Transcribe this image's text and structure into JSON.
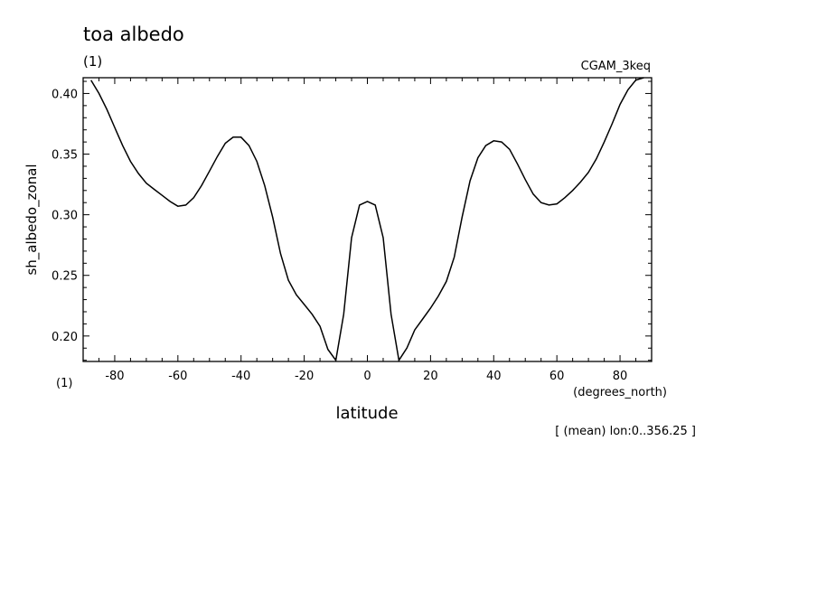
{
  "chart_data": {
    "type": "line",
    "title": "toa albedo",
    "title_index": "(1)",
    "dataset": "CGAM_3keq",
    "ylabel": "sh_albedo_zonal",
    "xlabel": "latitude",
    "xunits": "(degrees_north)",
    "y_index": "(1)",
    "footnote": "[ (mean) lon:0..356.25 ]",
    "xlim": [
      -90,
      90
    ],
    "ylim": [
      0.179,
      0.413
    ],
    "x_ticks": [
      -80,
      -60,
      -40,
      -20,
      0,
      20,
      40,
      60,
      80
    ],
    "x_tick_labels": [
      "-80",
      "-60",
      "-40",
      "-20",
      "0",
      "20",
      "40",
      "60",
      "80"
    ],
    "y_ticks": [
      0.2,
      0.25,
      0.3,
      0.35,
      0.4
    ],
    "y_tick_labels": [
      "0.20",
      "0.25",
      "0.30",
      "0.35",
      "0.40"
    ],
    "grid": false,
    "x": [
      -87.5,
      -85,
      -82.5,
      -80,
      -77.5,
      -75,
      -72.5,
      -70,
      -67.5,
      -65,
      -62.5,
      -60,
      -57.5,
      -55,
      -52.5,
      -50,
      -47.5,
      -45,
      -42.5,
      -40,
      -37.5,
      -35,
      -32.5,
      -30,
      -27.5,
      -25,
      -22.5,
      -20,
      -17.5,
      -15,
      -12.5,
      -10,
      -7.5,
      -5,
      -2.5,
      0,
      2.5,
      5,
      7.5,
      10,
      12.5,
      15,
      17.5,
      20,
      22.5,
      25,
      27.5,
      30,
      32.5,
      35,
      37.5,
      40,
      42.5,
      45,
      47.5,
      50,
      52.5,
      55,
      57.5,
      60,
      62.5,
      65,
      67.5,
      70,
      72.5,
      75,
      77.5,
      80,
      82.5,
      85,
      87.5
    ],
    "y": [
      0.411,
      0.4,
      0.387,
      0.372,
      0.357,
      0.344,
      0.334,
      0.326,
      0.321,
      0.316,
      0.311,
      0.307,
      0.308,
      0.314,
      0.324,
      0.336,
      0.348,
      0.359,
      0.364,
      0.364,
      0.357,
      0.344,
      0.324,
      0.298,
      0.268,
      0.246,
      0.234,
      0.226,
      0.218,
      0.208,
      0.189,
      0.18,
      0.218,
      0.281,
      0.308,
      0.311,
      0.308,
      0.281,
      0.218,
      0.18,
      0.19,
      0.205,
      0.214,
      0.223,
      0.233,
      0.245,
      0.265,
      0.298,
      0.328,
      0.347,
      0.357,
      0.361,
      0.36,
      0.354,
      0.342,
      0.329,
      0.317,
      0.31,
      0.308,
      0.309,
      0.314,
      0.32,
      0.327,
      0.335,
      0.346,
      0.36,
      0.375,
      0.391,
      0.403,
      0.411,
      0.413
    ]
  }
}
